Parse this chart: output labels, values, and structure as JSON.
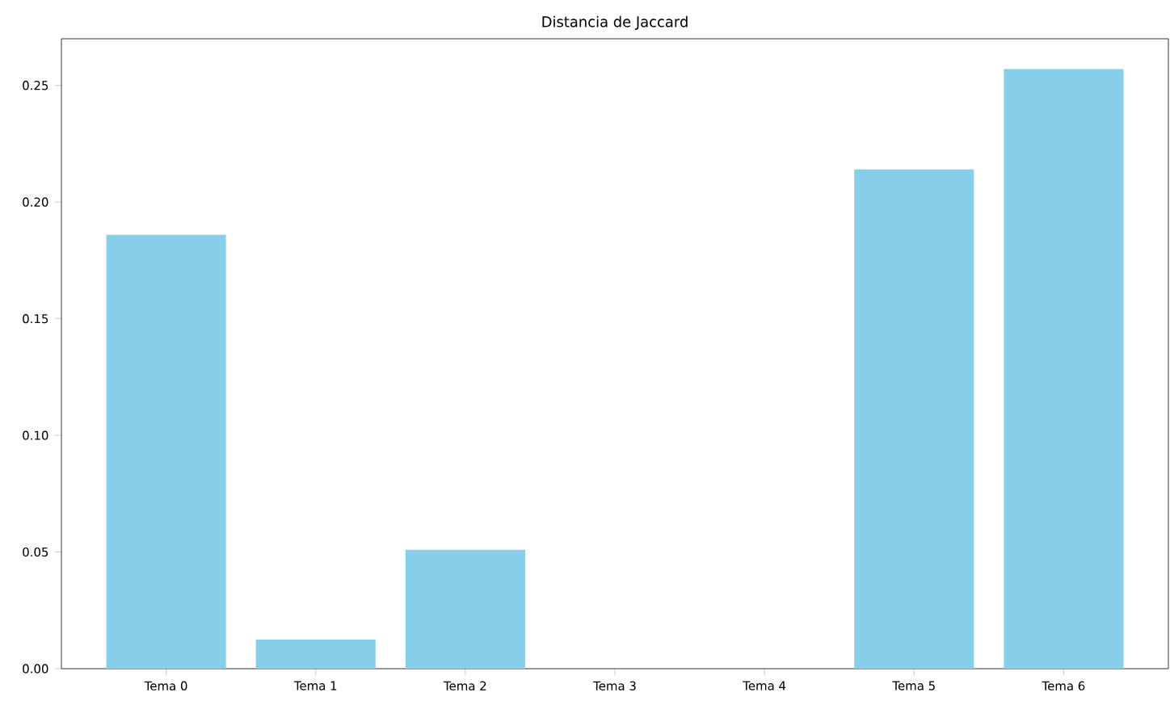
{
  "chart_data": {
    "type": "bar",
    "title": "Distancia de Jaccard",
    "categories": [
      "Tema 0",
      "Tema 1",
      "Tema 2",
      "Tema 3",
      "Tema 4",
      "Tema 5",
      "Tema 6"
    ],
    "values": [
      0.186,
      0.0125,
      0.051,
      0,
      0,
      0.214,
      0.257
    ],
    "color": "#87ceeb",
    "ylim": [
      0,
      0.27
    ],
    "yticks": [
      {
        "value": 0,
        "label": "0.00"
      },
      {
        "value": 0.05,
        "label": "0.05"
      },
      {
        "value": 0.1,
        "label": "0.10"
      },
      {
        "value": 0.15,
        "label": "0.15"
      },
      {
        "value": 0.2,
        "label": "0.20"
      },
      {
        "value": 0.25,
        "label": "0.25"
      }
    ],
    "grid": false
  }
}
